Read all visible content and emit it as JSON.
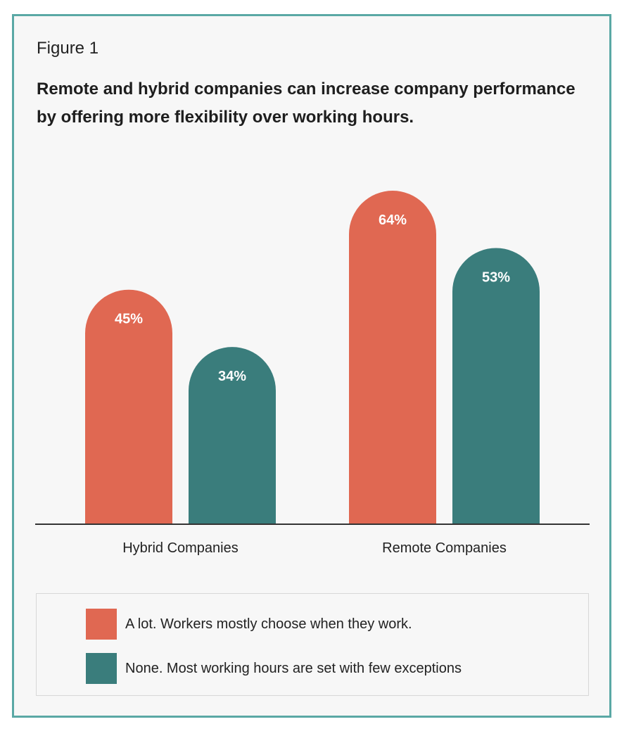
{
  "figure": {
    "label": "Figure 1",
    "title": "Remote and hybrid companies can increase company performance by offering more flexibility over working hours."
  },
  "colors": {
    "series_1": "#e06852",
    "series_2": "#3a7d7c",
    "frame_border": "#5aa8a5",
    "axis": "#333333"
  },
  "chart_data": {
    "type": "bar",
    "title": "Remote and hybrid companies can increase company performance by offering more flexibility over working hours.",
    "categories": [
      "Hybrid Companies",
      "Remote Companies"
    ],
    "series": [
      {
        "name": "A lot. Workers mostly choose when they work.",
        "values": [
          45,
          64
        ],
        "labels": [
          "45%",
          "64%"
        ]
      },
      {
        "name": "None. Most working hours are set with few exceptions",
        "values": [
          34,
          53
        ],
        "labels": [
          "34%",
          "53%"
        ]
      }
    ],
    "xlabel": "",
    "ylabel": "",
    "ylim": [
      0,
      64
    ],
    "grid": false,
    "legend_position": "bottom"
  },
  "legend": {
    "items": [
      {
        "label": "A lot. Workers mostly choose when they work."
      },
      {
        "label": "None. Most working hours are set with few exceptions"
      }
    ]
  }
}
